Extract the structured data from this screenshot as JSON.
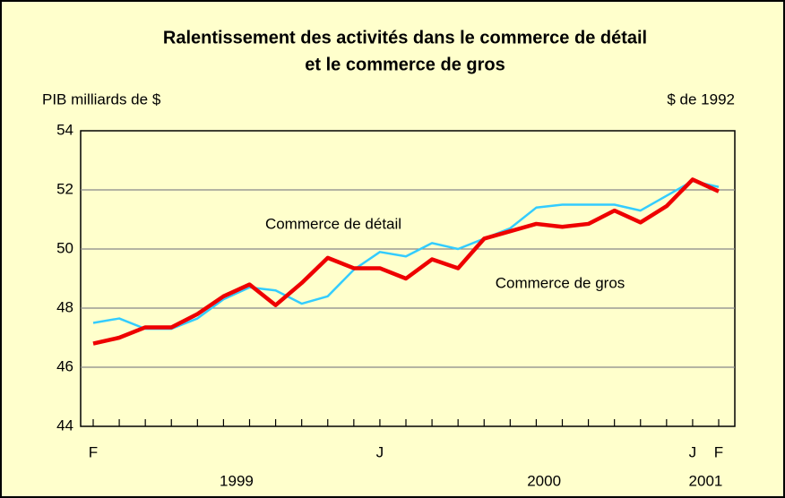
{
  "chart_data": {
    "type": "line",
    "title": [
      "Ralentissement des activités dans le commerce de détail",
      "et le commerce de gros"
    ],
    "ylabel": "PIB milliards de $",
    "y2label": "$ de 1992",
    "categories": [
      "F",
      null,
      null,
      null,
      null,
      null,
      null,
      null,
      null,
      null,
      null,
      "J",
      null,
      null,
      null,
      null,
      null,
      null,
      null,
      null,
      null,
      null,
      null,
      "J",
      "F"
    ],
    "years": [
      "1999",
      "2000",
      "2001"
    ],
    "series": [
      {
        "name": "Commerce de détail",
        "color": "#33ccff",
        "values": [
          47.5,
          47.65,
          47.3,
          47.3,
          47.65,
          48.3,
          48.7,
          48.6,
          48.15,
          48.4,
          49.3,
          49.9,
          49.75,
          50.2,
          50.0,
          50.35,
          50.7,
          51.4,
          51.5,
          51.5,
          51.5,
          51.3,
          51.8,
          52.3,
          52.1
        ]
      },
      {
        "name": "Commerce de gros",
        "color": "#ee0000",
        "values": [
          46.8,
          47.0,
          47.35,
          47.35,
          47.8,
          48.4,
          48.8,
          48.1,
          48.85,
          49.7,
          49.35,
          49.35,
          49.0,
          49.65,
          49.35,
          50.35,
          50.6,
          50.85,
          50.75,
          50.85,
          51.3,
          50.9,
          51.45,
          52.35,
          51.95
        ]
      }
    ],
    "ylim": [
      44,
      54
    ],
    "yticks": [
      44,
      46,
      48,
      50,
      52,
      54
    ],
    "grid": true
  }
}
